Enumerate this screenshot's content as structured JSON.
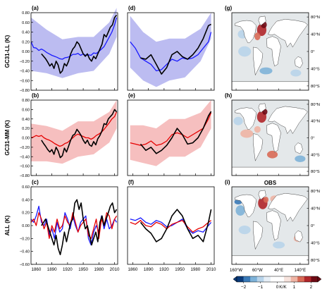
{
  "colors": {
    "obs_line": "#000000",
    "ll_line": "#1a1aff",
    "ll_band": "#b0b0ee",
    "mm_line": "#e60000",
    "mm_band": "#f4b4b4",
    "all_blue": "#1a1acc",
    "all_red": "#e01010",
    "map_ocean": "#e4e8ea",
    "map_land": "#ffffff",
    "colorbar": [
      "#0a3a7a",
      "#3a7ab8",
      "#7eb2d8",
      "#b8d4ea",
      "#e6eef6",
      "#ffffff",
      "#ffffff",
      "#f6e2dc",
      "#eeb4a4",
      "#d86a56",
      "#b0262a",
      "#6e0a14"
    ]
  },
  "row_ylabels": [
    "GC31-LL (K)",
    "GC31-MM (K)",
    "ALL (K)"
  ],
  "panel_labels": [
    "(a)",
    "(b)",
    "(c)",
    "(d)",
    "(e)",
    "(f)",
    "(g)",
    "(h)",
    "(i)"
  ],
  "obs_title": "OBS",
  "time_yticks": [
    "0.80",
    "0.60",
    "0.40",
    "0.20",
    "0.00",
    "−0.20",
    "−0.40",
    "−0.60",
    "−0.80"
  ],
  "time_xticks": [
    "1860",
    "1890",
    "1920",
    "1950",
    "1980",
    "2010"
  ],
  "map_lat_ticks": [
    "80°N",
    "40°N",
    "0°",
    "40°S",
    "80°S"
  ],
  "map_lon_ticks": [
    "160°W",
    "60°W",
    "40°E",
    "140°E"
  ],
  "colorbar_ticks": [
    "−2",
    "−1",
    "0",
    "1",
    "2"
  ],
  "colorbar_unit": "K/K",
  "chart_data": [
    {
      "panel": "(a)",
      "type": "line",
      "ylabel": "GC31-LL (K)",
      "ylim": [
        -0.8,
        0.8
      ],
      "xlim": [
        1850,
        2016
      ],
      "series": [
        {
          "color": "blue",
          "x": [
            1850,
            1855,
            1860,
            1865,
            1870,
            1875,
            1880,
            1885,
            1890,
            1895,
            1900,
            1905,
            1910,
            1915,
            1920,
            1925,
            1930,
            1935,
            1940,
            1945,
            1950,
            1955,
            1960,
            1965,
            1970,
            1975,
            1980,
            1985,
            1990,
            1995,
            2000,
            2005,
            2010,
            2014
          ],
          "y": [
            0.2,
            0.08,
            0.07,
            0.02,
            0.05,
            0.02,
            -0.02,
            -0.05,
            -0.08,
            -0.1,
            -0.12,
            -0.15,
            -0.16,
            -0.13,
            -0.12,
            -0.1,
            -0.06,
            -0.06,
            -0.04,
            -0.08,
            -0.05,
            -0.08,
            -0.07,
            -0.08,
            -0.03,
            -0.04,
            0.0,
            0.05,
            0.1,
            0.2,
            0.3,
            0.4,
            0.55,
            0.7
          ]
        },
        {
          "color": "black",
          "x": [
            1870,
            1874,
            1878,
            1882,
            1886,
            1890,
            1894,
            1898,
            1902,
            1906,
            1910,
            1914,
            1918,
            1922,
            1926,
            1930,
            1934,
            1938,
            1942,
            1946,
            1950,
            1954,
            1958,
            1962,
            1966,
            1970,
            1974,
            1978,
            1982,
            1986,
            1990,
            1994,
            1998,
            2002,
            2006,
            2010,
            2014
          ],
          "y": [
            -0.05,
            -0.1,
            -0.15,
            -0.22,
            -0.3,
            -0.25,
            -0.35,
            -0.2,
            -0.28,
            -0.45,
            -0.4,
            -0.25,
            -0.3,
            -0.2,
            -0.05,
            0.05,
            0.1,
            0.2,
            0.15,
            0.05,
            -0.05,
            -0.1,
            -0.05,
            -0.15,
            -0.2,
            -0.1,
            -0.15,
            -0.05,
            0.05,
            0.15,
            0.35,
            0.3,
            0.4,
            0.5,
            0.55,
            0.7,
            0.75
          ]
        }
      ],
      "band": {
        "color": "blue",
        "x": [
          1850,
          1880,
          1910,
          1940,
          1970,
          2000,
          2014
        ],
        "lower": [
          -0.4,
          -0.45,
          -0.55,
          -0.45,
          -0.4,
          -0.05,
          0.3
        ],
        "upper": [
          0.7,
          0.45,
          0.25,
          0.3,
          0.3,
          0.6,
          0.9
        ]
      }
    },
    {
      "panel": "(b)",
      "type": "line",
      "ylabel": "GC31-MM (K)",
      "ylim": [
        -0.8,
        0.8
      ],
      "xlim": [
        1850,
        2016
      ],
      "series": [
        {
          "color": "red",
          "x": [
            1850,
            1855,
            1860,
            1865,
            1870,
            1875,
            1880,
            1885,
            1890,
            1895,
            1900,
            1905,
            1910,
            1915,
            1920,
            1925,
            1930,
            1935,
            1940,
            1945,
            1950,
            1955,
            1960,
            1965,
            1970,
            1975,
            1980,
            1985,
            1990,
            1995,
            2000,
            2005,
            2010,
            2014
          ],
          "y": [
            0.0,
            0.02,
            0.05,
            0.03,
            0.05,
            0.0,
            -0.03,
            -0.05,
            -0.08,
            -0.12,
            -0.15,
            -0.18,
            -0.16,
            -0.12,
            -0.1,
            -0.05,
            0.0,
            0.05,
            0.08,
            0.05,
            0.03,
            0.0,
            0.0,
            -0.03,
            0.0,
            0.05,
            0.08,
            0.12,
            0.18,
            0.25,
            0.32,
            0.4,
            0.45,
            0.55
          ]
        },
        {
          "color": "black",
          "x": [
            1870,
            1874,
            1878,
            1882,
            1886,
            1890,
            1894,
            1898,
            1902,
            1906,
            1910,
            1914,
            1918,
            1922,
            1926,
            1930,
            1934,
            1938,
            1942,
            1946,
            1950,
            1954,
            1958,
            1962,
            1966,
            1970,
            1974,
            1978,
            1982,
            1986,
            1990,
            1994,
            1998,
            2002,
            2006,
            2010,
            2014
          ],
          "y": [
            -0.05,
            -0.12,
            -0.18,
            -0.25,
            -0.3,
            -0.25,
            -0.35,
            -0.2,
            -0.28,
            -0.42,
            -0.38,
            -0.22,
            -0.3,
            -0.18,
            -0.05,
            0.05,
            0.08,
            0.18,
            0.12,
            0.05,
            -0.05,
            -0.12,
            -0.05,
            -0.15,
            -0.18,
            -0.08,
            -0.15,
            -0.02,
            0.05,
            0.15,
            0.3,
            0.28,
            0.4,
            0.45,
            0.5,
            0.6,
            0.55
          ]
        }
      ],
      "band": {
        "color": "red",
        "x": [
          1850,
          1880,
          1910,
          1940,
          1970,
          2000,
          2014
        ],
        "lower": [
          -0.5,
          -0.5,
          -0.55,
          -0.4,
          -0.35,
          -0.1,
          0.2
        ],
        "upper": [
          0.3,
          0.25,
          0.15,
          0.35,
          0.35,
          0.55,
          0.8
        ]
      }
    },
    {
      "panel": "(c)",
      "type": "line",
      "ylabel": "ALL (K)",
      "ylim": [
        -0.6,
        0.6
      ],
      "xlim": [
        1850,
        2016
      ],
      "yticks": [
        "0.60",
        "0.40",
        "0.20",
        "0.00",
        "−0.20",
        "−0.40",
        "−0.60"
      ],
      "xticks": [
        "1860",
        "1890",
        "1920",
        "1950",
        "1980",
        "2010"
      ],
      "series": [
        {
          "color": "blue",
          "x": [
            1850,
            1855,
            1860,
            1865,
            1870,
            1875,
            1880,
            1885,
            1890,
            1895,
            1900,
            1905,
            1910,
            1915,
            1920,
            1925,
            1930,
            1935,
            1940,
            1945,
            1950,
            1955,
            1960,
            1965,
            1970,
            1975,
            1980,
            1985,
            1990,
            1995,
            2000,
            2005,
            2010,
            2014
          ],
          "y": [
            0.1,
            0.05,
            0.15,
            0.3,
            0.05,
            0.0,
            0.1,
            -0.15,
            -0.05,
            -0.2,
            0.05,
            -0.1,
            -0.05,
            0.2,
            0.1,
            -0.05,
            0.15,
            0.0,
            -0.1,
            0.05,
            0.1,
            0.15,
            -0.2,
            -0.3,
            -0.1,
            0.0,
            -0.1,
            0.15,
            -0.05,
            0.1,
            -0.05,
            0.0,
            0.1,
            0.05
          ]
        },
        {
          "color": "red",
          "x": [
            1850,
            1855,
            1860,
            1865,
            1870,
            1875,
            1880,
            1885,
            1890,
            1895,
            1900,
            1905,
            1910,
            1915,
            1920,
            1925,
            1930,
            1935,
            1940,
            1945,
            1950,
            1955,
            1960,
            1965,
            1970,
            1975,
            1980,
            1985,
            1990,
            1995,
            2000,
            2005,
            2010,
            2014
          ],
          "y": [
            0.05,
            0.1,
            0.0,
            0.2,
            0.1,
            -0.05,
            0.05,
            -0.2,
            0.0,
            -0.1,
            0.1,
            -0.05,
            0.0,
            0.15,
            0.05,
            0.0,
            0.2,
            0.05,
            -0.1,
            0.0,
            0.05,
            0.1,
            -0.15,
            -0.2,
            -0.05,
            0.1,
            -0.2,
            0.1,
            0.0,
            0.2,
            0.15,
            -0.05,
            0.1,
            0.15
          ]
        },
        {
          "color": "black",
          "x": [
            1870,
            1874,
            1878,
            1882,
            1886,
            1890,
            1894,
            1898,
            1902,
            1906,
            1910,
            1914,
            1918,
            1922,
            1926,
            1930,
            1934,
            1938,
            1942,
            1946,
            1950,
            1954,
            1958,
            1962,
            1966,
            1970,
            1974,
            1978,
            1982,
            1986,
            1990,
            1994,
            1998,
            2002,
            2006,
            2010,
            2014
          ],
          "y": [
            0.0,
            0.05,
            0.1,
            0.0,
            -0.1,
            -0.2,
            -0.3,
            -0.15,
            -0.35,
            -0.45,
            -0.3,
            -0.1,
            -0.25,
            -0.1,
            0.05,
            0.1,
            0.35,
            0.4,
            0.25,
            0.35,
            0.1,
            -0.05,
            0.0,
            -0.15,
            -0.3,
            -0.2,
            -0.1,
            -0.25,
            0.05,
            0.15,
            0.0,
            0.1,
            0.2,
            0.3,
            0.35,
            0.2,
            0.25
          ]
        }
      ]
    },
    {
      "panel": "(d)",
      "type": "line",
      "xlim": [
        1850,
        2016
      ],
      "ylim": [
        -0.6,
        0.6
      ],
      "xticks": [],
      "series": [
        {
          "color": "blue",
          "x": [
            1855,
            1865,
            1875,
            1885,
            1895,
            1905,
            1915,
            1925,
            1935,
            1945,
            1955,
            1965,
            1975,
            1985,
            1995,
            2005,
            2010
          ],
          "y": [
            0.15,
            0.05,
            -0.1,
            -0.15,
            -0.2,
            -0.3,
            -0.28,
            -0.2,
            -0.12,
            -0.15,
            -0.1,
            -0.12,
            -0.1,
            -0.05,
            0.05,
            0.15,
            0.3
          ]
        },
        {
          "color": "black",
          "x": [
            1875,
            1885,
            1895,
            1905,
            1915,
            1925,
            1935,
            1945,
            1955,
            1965,
            1975,
            1985,
            1995,
            2005,
            2010
          ],
          "y": [
            -0.1,
            -0.12,
            -0.05,
            -0.2,
            -0.35,
            -0.25,
            -0.05,
            0.0,
            -0.08,
            -0.12,
            -0.05,
            0.05,
            0.2,
            0.4,
            0.42
          ]
        }
      ],
      "band": {
        "color": "blue",
        "x": [
          1855,
          1880,
          1905,
          1930,
          1960,
          1990,
          2010
        ],
        "lower": [
          -0.25,
          -0.45,
          -0.55,
          -0.45,
          -0.4,
          -0.15,
          0.2
        ],
        "upper": [
          0.55,
          0.3,
          0.15,
          0.2,
          0.2,
          0.35,
          0.6
        ]
      }
    },
    {
      "panel": "(e)",
      "type": "line",
      "xlim": [
        1850,
        2016
      ],
      "ylim": [
        -0.6,
        0.6
      ],
      "xticks": [],
      "series": [
        {
          "color": "red",
          "x": [
            1855,
            1865,
            1875,
            1885,
            1895,
            1905,
            1915,
            1925,
            1935,
            1945,
            1955,
            1965,
            1975,
            1985,
            1995,
            2005,
            2010
          ],
          "y": [
            -0.08,
            -0.1,
            -0.12,
            -0.1,
            -0.05,
            -0.12,
            -0.1,
            -0.05,
            0.05,
            0.08,
            0.05,
            0.0,
            0.05,
            0.1,
            0.15,
            0.3,
            0.4
          ]
        },
        {
          "color": "black",
          "x": [
            1875,
            1885,
            1895,
            1905,
            1915,
            1925,
            1935,
            1945,
            1955,
            1965,
            1975,
            1985,
            1995,
            2005,
            2010
          ],
          "y": [
            -0.1,
            -0.2,
            -0.15,
            -0.25,
            -0.2,
            -0.12,
            0.0,
            0.15,
            0.05,
            -0.1,
            -0.08,
            0.0,
            0.15,
            0.35,
            0.42
          ]
        }
      ],
      "band": {
        "color": "red",
        "x": [
          1855,
          1880,
          1905,
          1930,
          1960,
          1990,
          2010
        ],
        "lower": [
          -0.35,
          -0.4,
          -0.45,
          -0.3,
          -0.3,
          -0.15,
          0.15
        ],
        "upper": [
          0.2,
          0.2,
          0.15,
          0.3,
          0.3,
          0.4,
          0.6
        ]
      }
    },
    {
      "panel": "(f)",
      "type": "line",
      "xlim": [
        1850,
        2016
      ],
      "ylim": [
        -0.6,
        0.6
      ],
      "xticks": [
        "1860",
        "1890",
        "1920",
        "1950",
        "1980",
        "2010"
      ],
      "series": [
        {
          "color": "blue",
          "x": [
            1855,
            1865,
            1875,
            1885,
            1895,
            1905,
            1915,
            1925,
            1935,
            1945,
            1955,
            1965,
            1975,
            1985,
            1995,
            2005,
            2010
          ],
          "y": [
            0.1,
            0.08,
            0.12,
            0.05,
            0.02,
            0.08,
            0.05,
            -0.02,
            0.0,
            0.05,
            0.1,
            -0.05,
            -0.12,
            -0.08,
            -0.1,
            0.0,
            0.05
          ]
        },
        {
          "color": "red",
          "x": [
            1855,
            1865,
            1875,
            1885,
            1895,
            1905,
            1915,
            1925,
            1935,
            1945,
            1955,
            1965,
            1975,
            1985,
            1995,
            2005,
            2010
          ],
          "y": [
            0.05,
            0.02,
            0.08,
            0.0,
            -0.02,
            0.05,
            0.02,
            -0.05,
            0.02,
            0.05,
            0.08,
            -0.02,
            -0.1,
            -0.05,
            -0.02,
            0.05,
            0.08
          ]
        },
        {
          "color": "black",
          "x": [
            1875,
            1885,
            1895,
            1905,
            1915,
            1925,
            1935,
            1945,
            1955,
            1965,
            1975,
            1985,
            1995,
            2005,
            2010
          ],
          "y": [
            0.05,
            -0.05,
            -0.12,
            -0.25,
            -0.2,
            -0.05,
            0.15,
            0.25,
            0.15,
            -0.05,
            -0.2,
            -0.15,
            -0.25,
            0.05,
            0.25
          ]
        }
      ]
    }
  ]
}
